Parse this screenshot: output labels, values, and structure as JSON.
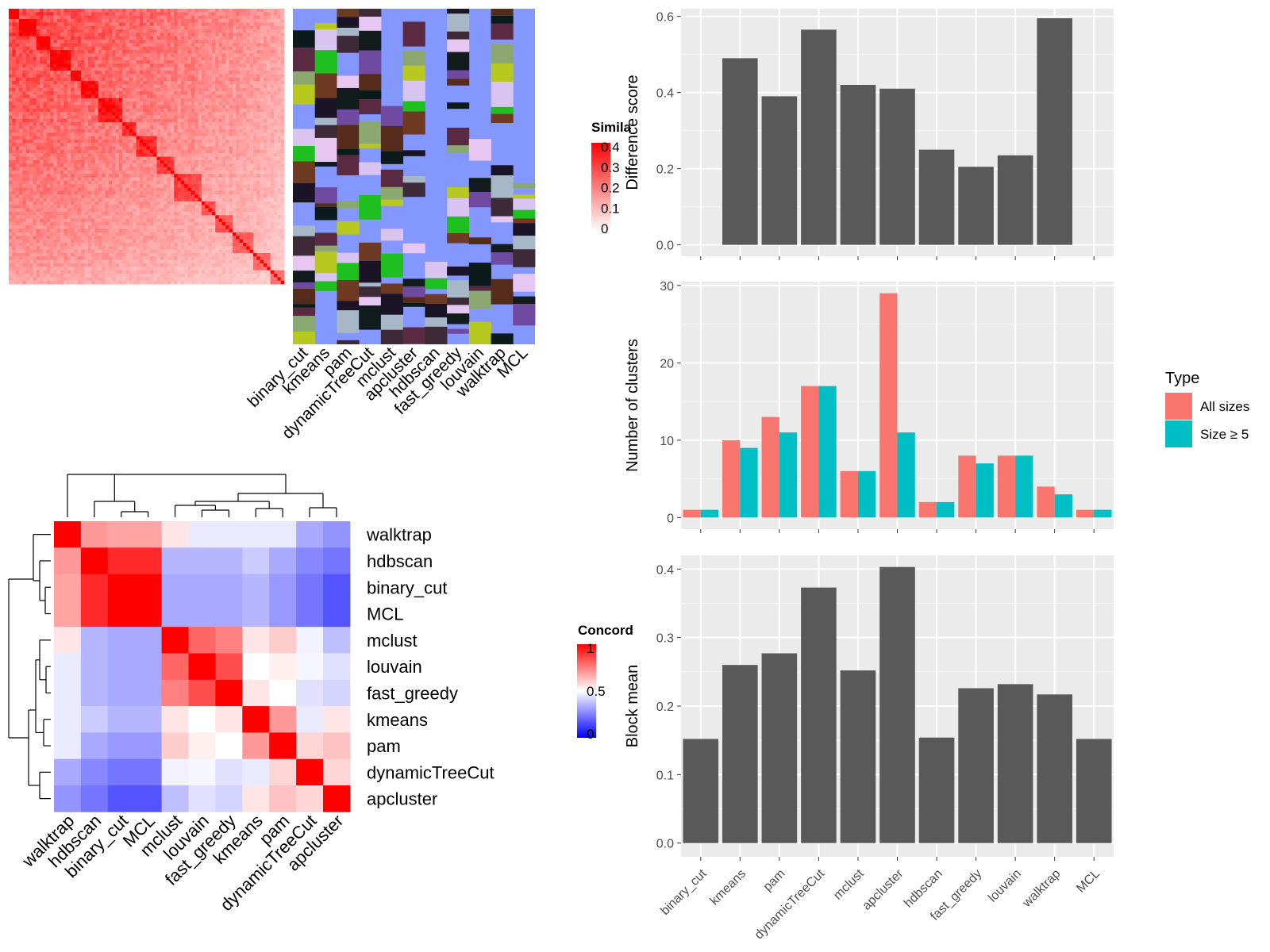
{
  "figure": {
    "colors": {
      "red": "#ff0000",
      "blue": "#0000ff",
      "white": "#ffffff",
      "ggplot_panel": "#ebebeb",
      "bar_dark": "#595959",
      "all_sizes": "#f8766d",
      "size_ge5": "#00bfc4",
      "class_bg": "#8397ff"
    }
  },
  "chart_data": [
    {
      "type": "heatmap",
      "id": "similarity-heatmap",
      "description_of_values": "consensus-partition similarity matrix (many samples)",
      "legend": {
        "title": "Simila",
        "ticks": [
          "0.4",
          "0.3",
          "0.2",
          "0.1",
          "0"
        ],
        "range": [
          0,
          0.4
        ]
      },
      "annotation_columns": [
        "binary_cut",
        "kmeans",
        "pam",
        "dynamicTreeCut",
        "mclust",
        "apcluster",
        "hdbscan",
        "fast_greedy",
        "louvain",
        "walktrap",
        "MCL"
      ]
    },
    {
      "type": "heatmap",
      "id": "concordance-heatmap",
      "legend": {
        "title": "Concord",
        "ticks": [
          "1",
          "0.5",
          "0"
        ],
        "range": [
          0,
          1
        ]
      },
      "row_labels": [
        "walktrap",
        "hdbscan",
        "binary_cut",
        "MCL",
        "mclust",
        "louvain",
        "fast_greedy",
        "kmeans",
        "pam",
        "dynamicTreeCut",
        "apcluster"
      ],
      "col_labels": [
        "walktrap",
        "hdbscan",
        "binary_cut",
        "MCL",
        "mclust",
        "louvain",
        "fast_greedy",
        "kmeans",
        "pam",
        "dynamicTreeCut",
        "apcluster"
      ],
      "values": [
        [
          1.0,
          0.7,
          0.68,
          0.68,
          0.55,
          0.45,
          0.45,
          0.45,
          0.45,
          0.3,
          0.25
        ],
        [
          0.7,
          1.0,
          0.92,
          0.92,
          0.33,
          0.33,
          0.33,
          0.38,
          0.3,
          0.22,
          0.18
        ],
        [
          0.68,
          0.92,
          1.0,
          1.0,
          0.3,
          0.3,
          0.3,
          0.33,
          0.26,
          0.18,
          0.1
        ],
        [
          0.68,
          0.92,
          1.0,
          1.0,
          0.3,
          0.3,
          0.3,
          0.33,
          0.26,
          0.18,
          0.1
        ],
        [
          0.55,
          0.33,
          0.3,
          0.3,
          1.0,
          0.8,
          0.75,
          0.55,
          0.6,
          0.47,
          0.35
        ],
        [
          0.45,
          0.33,
          0.3,
          0.3,
          0.8,
          1.0,
          0.85,
          0.5,
          0.53,
          0.48,
          0.43
        ],
        [
          0.45,
          0.33,
          0.3,
          0.3,
          0.75,
          0.85,
          1.0,
          0.55,
          0.5,
          0.43,
          0.4
        ],
        [
          0.45,
          0.38,
          0.33,
          0.33,
          0.55,
          0.5,
          0.55,
          1.0,
          0.7,
          0.45,
          0.55
        ],
        [
          0.45,
          0.3,
          0.26,
          0.26,
          0.6,
          0.53,
          0.5,
          0.7,
          1.0,
          0.58,
          0.62
        ],
        [
          0.3,
          0.22,
          0.18,
          0.18,
          0.47,
          0.48,
          0.43,
          0.45,
          0.58,
          1.0,
          0.58
        ],
        [
          0.25,
          0.18,
          0.1,
          0.1,
          0.35,
          0.43,
          0.4,
          0.55,
          0.62,
          0.58,
          1.0
        ]
      ]
    },
    {
      "type": "bar",
      "id": "difference-score",
      "categories": [
        "binary_cut",
        "kmeans",
        "pam",
        "dynamicTreeCut",
        "mclust",
        "apcluster",
        "hdbscan",
        "fast_greedy",
        "louvain",
        "walktrap",
        "MCL"
      ],
      "values": [
        0,
        0.49,
        0.39,
        0.565,
        0.42,
        0.41,
        0.25,
        0.205,
        0.235,
        0.595,
        0
      ],
      "ylabel": "Difference score",
      "ylim": [
        -0.03,
        0.62
      ],
      "yticks": [
        "0.0",
        "0.2",
        "0.4",
        "0.6"
      ]
    },
    {
      "type": "bar",
      "id": "number-of-clusters",
      "categories": [
        "binary_cut",
        "kmeans",
        "pam",
        "dynamicTreeCut",
        "mclust",
        "apcluster",
        "hdbscan",
        "fast_greedy",
        "louvain",
        "walktrap",
        "MCL"
      ],
      "series": [
        {
          "name": "All sizes",
          "values": [
            1,
            10,
            13,
            17,
            6,
            29,
            2,
            8,
            8,
            4,
            1
          ]
        },
        {
          "name": "Size ≥ 5",
          "values": [
            1,
            9,
            11,
            17,
            6,
            11,
            2,
            7,
            8,
            3,
            1
          ]
        }
      ],
      "ylabel": "Number of clusters",
      "ylim": [
        -1.5,
        30.5
      ],
      "yticks": [
        "0",
        "10",
        "20",
        "30"
      ],
      "legend": {
        "title": "Type",
        "placement": "right"
      }
    },
    {
      "type": "bar",
      "id": "block-mean",
      "categories": [
        "binary_cut",
        "kmeans",
        "pam",
        "dynamicTreeCut",
        "mclust",
        "apcluster",
        "hdbscan",
        "fast_greedy",
        "louvain",
        "walktrap",
        "MCL"
      ],
      "values": [
        0.152,
        0.26,
        0.277,
        0.373,
        0.252,
        0.403,
        0.154,
        0.226,
        0.232,
        0.217,
        0.152
      ],
      "ylabel": "Block mean",
      "ylim": [
        -0.02,
        0.42
      ],
      "yticks": [
        "0.0",
        "0.1",
        "0.2",
        "0.3",
        "0.4"
      ],
      "xticklabels": [
        "binary_cut",
        "kmeans",
        "pam",
        "dynamicTreeCut",
        "mclust",
        "apcluster",
        "hdbscan",
        "fast_greedy",
        "louvain",
        "walktrap",
        "MCL"
      ]
    }
  ]
}
